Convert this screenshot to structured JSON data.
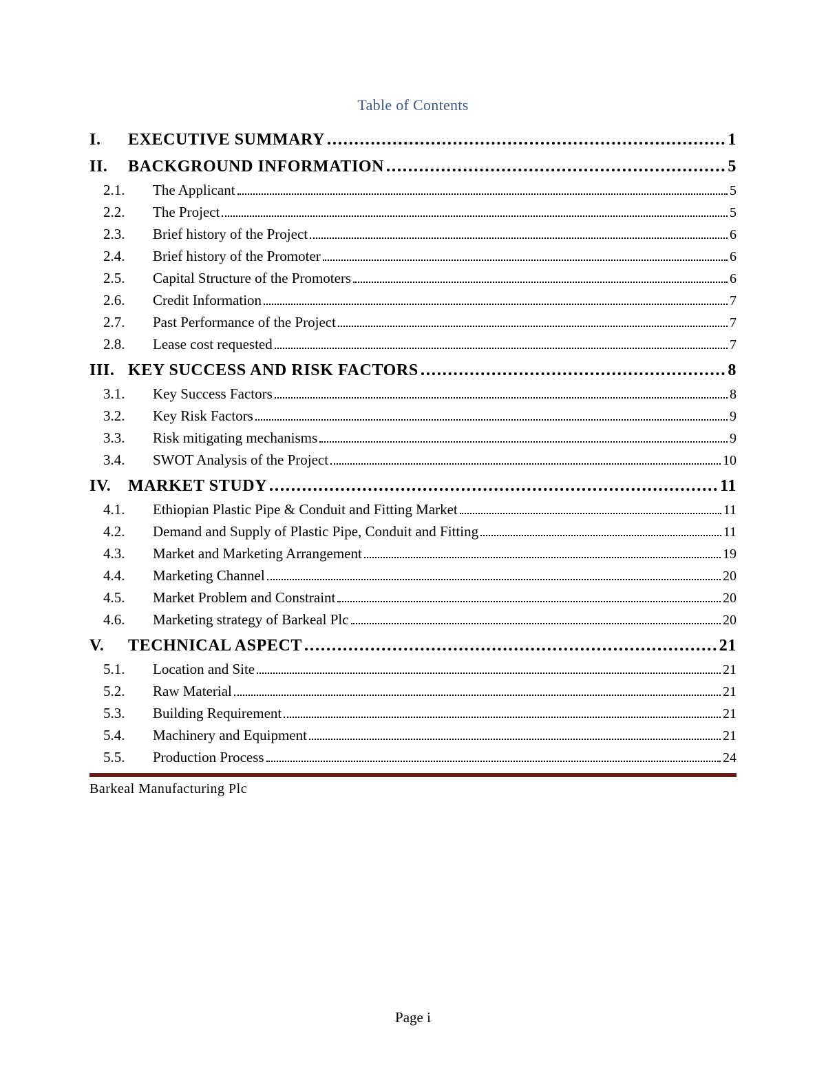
{
  "title_color": "#3a5a8a",
  "rule_color": "#6b1a1a",
  "toc_title": "Table of Contents",
  "footer": "Barkeal Manufacturing Plc",
  "page_label": "Page i",
  "sections": [
    {
      "num": "I.",
      "label": "EXECUTIVE SUMMARY",
      "page": "1",
      "subs": []
    },
    {
      "num": "II.",
      "label": "BACKGROUND INFORMATION",
      "page": "5",
      "subs": [
        {
          "num": "2.1.",
          "label": "The Applicant",
          "page": "5"
        },
        {
          "num": "2.2.",
          "label": "The Project",
          "page": "5"
        },
        {
          "num": "2.3.",
          "label": "Brief history of the Project",
          "page": "6"
        },
        {
          "num": "2.4.",
          "label": "Brief history of the Promoter",
          "page": "6"
        },
        {
          "num": "2.5.",
          "label": "Capital Structure of the Promoters",
          "page": "6"
        },
        {
          "num": "2.6.",
          "label": "Credit Information",
          "page": "7"
        },
        {
          "num": "2.7.",
          "label": "Past Performance of the Project",
          "page": "7"
        },
        {
          "num": "2.8.",
          "label": "Lease cost requested",
          "page": "7"
        }
      ]
    },
    {
      "num": "III.",
      "label": "KEY SUCCESS AND RISK FACTORS",
      "page": "8",
      "subs": [
        {
          "num": "3.1.",
          "label": "Key Success Factors",
          "page": "8"
        },
        {
          "num": "3.2.",
          "label": "Key Risk Factors",
          "page": "9"
        },
        {
          "num": "3.3.",
          "label": "Risk mitigating mechanisms",
          "page": "9"
        },
        {
          "num": "3.4.",
          "label": "SWOT Analysis of the Project",
          "page": "10"
        }
      ]
    },
    {
      "num": "IV.",
      "label": "MARKET STUDY",
      "page": "11",
      "subs": [
        {
          "num": "4.1.",
          "label": "Ethiopian Plastic Pipe & Conduit and Fitting Market",
          "page": "11"
        },
        {
          "num": "4.2.",
          "label": "Demand and Supply of Plastic Pipe, Conduit and Fitting",
          "page": "11"
        },
        {
          "num": "4.3.",
          "label": "Market and Marketing Arrangement",
          "page": "19"
        },
        {
          "num": "4.4.",
          "label": "Marketing Channel",
          "page": "20"
        },
        {
          "num": "4.5.",
          "label": "Market Problem and Constraint",
          "page": "20"
        },
        {
          "num": "4.6.",
          "label": "Marketing strategy of Barkeal Plc",
          "page": "20"
        }
      ]
    },
    {
      "num": "V.",
      "label": "TECHNICAL ASPECT",
      "page": "21",
      "subs": [
        {
          "num": "5.1.",
          "label": "Location and Site",
          "page": "21"
        },
        {
          "num": "5.2.",
          "label": "Raw Material",
          "page": "21"
        },
        {
          "num": "5.3.",
          "label": "Building Requirement",
          "page": "21"
        },
        {
          "num": "5.4.",
          "label": "Machinery and Equipment",
          "page": "21"
        },
        {
          "num": "5.5.",
          "label": "Production Process",
          "page": "24"
        }
      ]
    }
  ]
}
